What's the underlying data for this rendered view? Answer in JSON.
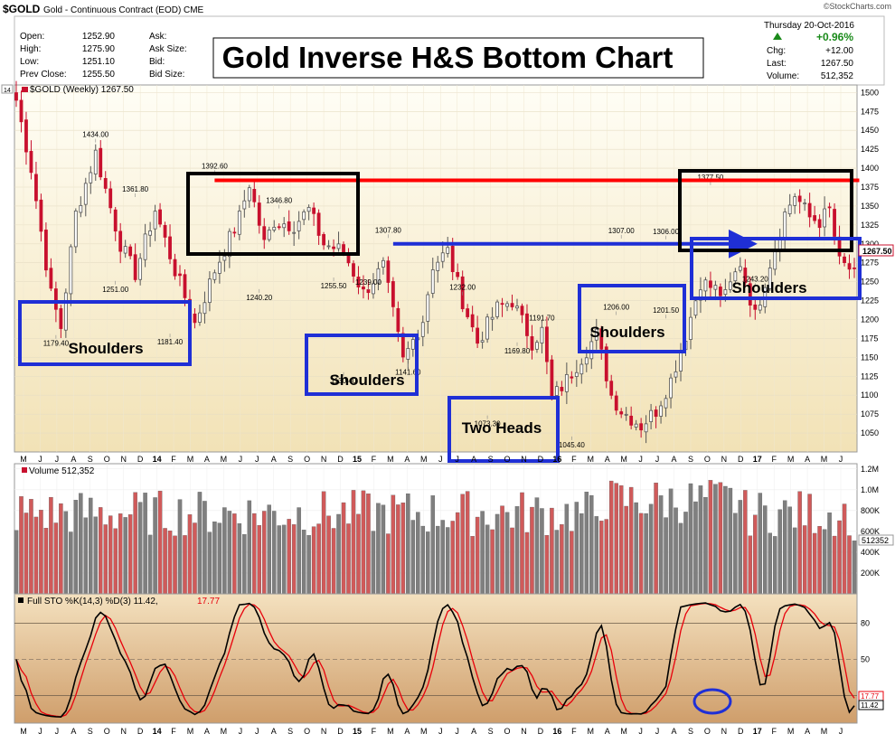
{
  "header": {
    "symbol": "$GOLD",
    "description": "Gold - Continuous Contract (EOD)",
    "exchange": "CME",
    "watermark": "©StockCharts.com",
    "date": "Thursday  20-Oct-2016",
    "change_pct": "+0.96%",
    "quote_labels": [
      "Open:",
      "High:",
      "Low:",
      "Prev Close:"
    ],
    "quote_values": [
      "1252.90",
      "1275.90",
      "1251.10",
      "1255.50"
    ],
    "mid_labels": [
      "Ask:",
      "Ask Size:",
      "Bid:",
      "Bid Size:"
    ],
    "right_labels": [
      "Chg:",
      "Last:",
      "Volume:"
    ],
    "right_values": [
      "+12.00",
      "1267.50",
      "512,352"
    ],
    "legend": "$GOLD (Weekly) 1267.50",
    "legend_marker": "14",
    "last_tag": "1267.50"
  },
  "title_banner": "Gold Inverse H&S Bottom Chart",
  "annotations": {
    "shoulders": "Shoulders",
    "two_heads": "Two Heads"
  },
  "volume_panel": {
    "label": "Volume 512,352",
    "value_tag": "512352",
    "axis_labels": [
      "1.2M",
      "1.0M",
      "800K",
      "600K",
      "400K",
      "200K"
    ]
  },
  "sto_panel": {
    "label": "Full STO %K(14,3) %D(3) 11.42,",
    "d_value": "17.77",
    "k_tag": "11.42",
    "d_tag": "17.77",
    "axis_labels": [
      "80",
      "50",
      "20"
    ]
  },
  "colors": {
    "up": "#555555",
    "down": "#c8102e",
    "vol_up": "#7f7f7f",
    "vol_down": "#d05a5a",
    "neckline": "#ff0000",
    "blue": "#1f2fd6",
    "stoK": "#000000",
    "stoD": "#e8000b"
  },
  "chart_data": {
    "type": "candlestick",
    "title": "Gold Inverse H&S Bottom Chart",
    "series_name": "$GOLD (Weekly)",
    "ylim": [
      1025,
      1510
    ],
    "y_ticks": [
      1050,
      1075,
      1100,
      1125,
      1150,
      1175,
      1200,
      1225,
      1250,
      1275,
      1300,
      1325,
      1350,
      1375,
      1400,
      1425,
      1450,
      1475,
      1500
    ],
    "x_ticks": [
      "M",
      "J",
      "J",
      "A",
      "S",
      "O",
      "N",
      "D",
      "14",
      "F",
      "M",
      "A",
      "M",
      "J",
      "J",
      "A",
      "S",
      "O",
      "N",
      "D",
      "15",
      "F",
      "M",
      "A",
      "M",
      "J",
      "J",
      "A",
      "S",
      "O",
      "N",
      "D",
      "16",
      "F",
      "M",
      "A",
      "M",
      "J",
      "J",
      "A",
      "S",
      "O",
      "N",
      "D",
      "17",
      "F",
      "M",
      "A",
      "M",
      "J"
    ],
    "anchors": [
      [
        0,
        1490
      ],
      [
        3,
        1400
      ],
      [
        7,
        1233
      ],
      [
        9,
        1190
      ],
      [
        12,
        1340
      ],
      [
        16,
        1420
      ],
      [
        21,
        1300
      ],
      [
        24,
        1261
      ],
      [
        28,
        1345
      ],
      [
        32,
        1265
      ],
      [
        36,
        1195
      ],
      [
        40,
        1265
      ],
      [
        45,
        1335
      ],
      [
        47,
        1380
      ],
      [
        50,
        1300
      ],
      [
        52,
        1330
      ],
      [
        56,
        1325
      ],
      [
        59,
        1345
      ],
      [
        62,
        1300
      ],
      [
        66,
        1290
      ],
      [
        70,
        1235
      ],
      [
        74,
        1270
      ],
      [
        78,
        1145
      ],
      [
        82,
        1200
      ],
      [
        84,
        1272
      ],
      [
        87,
        1290
      ],
      [
        90,
        1225
      ],
      [
        93,
        1170
      ],
      [
        97,
        1215
      ],
      [
        100,
        1225
      ],
      [
        104,
        1170
      ],
      [
        106,
        1185
      ],
      [
        108,
        1095
      ],
      [
        111,
        1120
      ],
      [
        114,
        1150
      ],
      [
        117,
        1180
      ],
      [
        120,
        1100
      ],
      [
        122,
        1080
      ],
      [
        126,
        1060
      ],
      [
        129,
        1080
      ],
      [
        132,
        1120
      ],
      [
        135,
        1180
      ],
      [
        138,
        1250
      ],
      [
        141,
        1240
      ],
      [
        143,
        1230
      ],
      [
        146,
        1275
      ],
      [
        149,
        1205
      ],
      [
        152,
        1275
      ],
      [
        155,
        1340
      ],
      [
        157,
        1365
      ],
      [
        160,
        1335
      ],
      [
        162,
        1330
      ],
      [
        164,
        1345
      ],
      [
        166,
        1275
      ],
      [
        168,
        1267.5
      ]
    ],
    "price_labels": [
      {
        "t": 16,
        "v": 1434.0,
        "text": "1434.00"
      },
      {
        "t": 24,
        "v": 1361.8,
        "text": "1361.80"
      },
      {
        "t": 20,
        "v": 1251.0,
        "text": "1251.00"
      },
      {
        "t": 8,
        "v": 1179.4,
        "text": "1179.40"
      },
      {
        "t": 31,
        "v": 1181.4,
        "text": "1181.40"
      },
      {
        "t": 40,
        "v": 1392.6,
        "text": "1392.60"
      },
      {
        "t": 53,
        "v": 1346.8,
        "text": "1346.80"
      },
      {
        "t": 49,
        "v": 1240.2,
        "text": "1240.20"
      },
      {
        "t": 64,
        "v": 1255.5,
        "text": "1255.50"
      },
      {
        "t": 71,
        "v": 1239.0,
        "text": "1239.00"
      },
      {
        "t": 66,
        "v": 1130.4,
        "text": "1130.40"
      },
      {
        "t": 79,
        "v": 1141.6,
        "text": "1141.60"
      },
      {
        "t": 75,
        "v": 1307.8,
        "text": "1307.80"
      },
      {
        "t": 90,
        "v": 1232.0,
        "text": "1232.00"
      },
      {
        "t": 101,
        "v": 1169.8,
        "text": "1169.80"
      },
      {
        "t": 106,
        "v": 1191.7,
        "text": "1191.70"
      },
      {
        "t": 95,
        "v": 1073.3,
        "text": "1073.30"
      },
      {
        "t": 112,
        "v": 1045.4,
        "text": "1045.40"
      },
      {
        "t": 122,
        "v": 1307.0,
        "text": "1307.00"
      },
      {
        "t": 131,
        "v": 1306.0,
        "text": "1306.00"
      },
      {
        "t": 121,
        "v": 1206.0,
        "text": "1206.00"
      },
      {
        "t": 131,
        "v": 1201.5,
        "text": "1201.50"
      },
      {
        "t": 140,
        "v": 1377.5,
        "text": "1377.50"
      },
      {
        "t": 149,
        "v": 1243.2,
        "text": "1243.20"
      }
    ],
    "lines": [
      {
        "name": "neckline-red",
        "from": {
          "t": 40,
          "v": 1384
        },
        "to": {
          "t": 170,
          "v": 1384
        }
      },
      {
        "name": "neckline-blue",
        "from": {
          "t": 76,
          "v": 1300
        },
        "to": {
          "t": 148,
          "v": 1300
        }
      }
    ]
  }
}
